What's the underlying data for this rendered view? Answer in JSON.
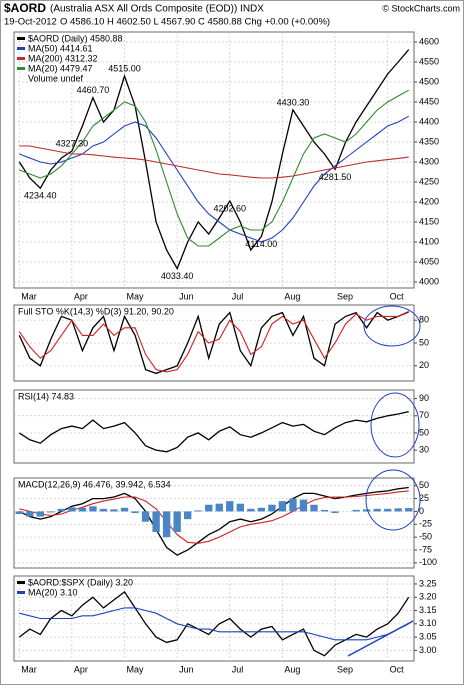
{
  "header": {
    "symbol": "$AORD",
    "title": "(Australia ASX All Ords Composite (EOD)) INDX",
    "date": "19-Oct-2012",
    "quote_line": "O 4586.10  H 4602.50  L 4567.90  C 4580.88  Chg +0.00 (+0.00%)",
    "credit": "© StockCharts.com"
  },
  "chart_data": [
    {
      "type": "line",
      "categories": [
        "Mar",
        null,
        null,
        null,
        null,
        "Apr",
        null,
        null,
        null,
        null,
        "May",
        null,
        null,
        null,
        null,
        "Jun",
        null,
        null,
        null,
        null,
        "Jul",
        null,
        null,
        null,
        null,
        "Aug",
        null,
        null,
        null,
        null,
        "Sep",
        null,
        null,
        null,
        null,
        "Oct",
        null,
        null
      ],
      "series": [
        {
          "name": "$AORD (Daily) 4580.88",
          "color": "#000000",
          "values": [
            4300,
            4260,
            4234.4,
            4280,
            4310,
            4327.3,
            4390,
            4460.7,
            4400,
            4430,
            4515,
            4440,
            4300,
            4150,
            4080,
            4033.4,
            4100,
            4150,
            4120,
            4160,
            4202.6,
            4150,
            4080,
            4114,
            4200,
            4320,
            4430.3,
            4390,
            4350,
            4320,
            4281.5,
            4350,
            4400,
            4440,
            4480,
            4520,
            4550,
            4580.88
          ]
        },
        {
          "name": "MA(50) 4414.61",
          "color": "#1f3fbf",
          "values": [
            4320,
            4310,
            4300,
            4295,
            4300,
            4310,
            4320,
            4340,
            4350,
            4370,
            4390,
            4400,
            4390,
            4360,
            4320,
            4280,
            4240,
            4200,
            4170,
            4150,
            4130,
            4120,
            4110,
            4100,
            4110,
            4130,
            4160,
            4200,
            4240,
            4270,
            4290,
            4310,
            4330,
            4350,
            4370,
            4390,
            4400,
            4414.61
          ]
        },
        {
          "name": "MA(200) 4312.32",
          "color": "#c0282e",
          "values": [
            4340,
            4340,
            4335,
            4330,
            4325,
            4320,
            4320,
            4318,
            4315,
            4312,
            4310,
            4308,
            4305,
            4300,
            4295,
            4290,
            4285,
            4280,
            4275,
            4270,
            4268,
            4265,
            4262,
            4260,
            4260,
            4262,
            4265,
            4270,
            4275,
            4280,
            4285,
            4290,
            4295,
            4300,
            4303,
            4306,
            4309,
            4312.32
          ]
        },
        {
          "name": "MA(20) 4479.47",
          "color": "#2e8b2e",
          "values": [
            4280,
            4270,
            4260,
            4270,
            4290,
            4320,
            4350,
            4390,
            4410,
            4430,
            4450,
            4440,
            4400,
            4330,
            4250,
            4170,
            4110,
            4090,
            4090,
            4110,
            4130,
            4140,
            4130,
            4130,
            4150,
            4200,
            4260,
            4320,
            4360,
            4370,
            4360,
            4350,
            4370,
            4400,
            4430,
            4450,
            4465,
            4479.47
          ]
        }
      ],
      "note": "Volume undef",
      "annotations": [
        {
          "x": 2,
          "value": 4234.4,
          "label": "4234.40"
        },
        {
          "x": 5,
          "value": 4327.3,
          "label": "4327.30"
        },
        {
          "x": 7,
          "value": 4460.7,
          "label": "4460.70"
        },
        {
          "x": 10,
          "value": 4515,
          "label": "4515.00"
        },
        {
          "x": 15,
          "value": 4033.4,
          "label": "4033.40"
        },
        {
          "x": 20,
          "value": 4202.6,
          "label": "4202.60"
        },
        {
          "x": 23,
          "value": 4114,
          "label": "4114.00"
        },
        {
          "x": 26,
          "value": 4430.3,
          "label": "4430.30"
        },
        {
          "x": 30,
          "value": 4281.5,
          "label": "4281.50"
        }
      ],
      "ylim": [
        3985,
        4625
      ],
      "yticks": [
        4000,
        4050,
        4100,
        4150,
        4200,
        4250,
        4300,
        4350,
        4400,
        4450,
        4500,
        4550,
        4600
      ],
      "grid": true
    },
    {
      "type": "line",
      "title": "Full STO %K(14,3) %D(3) 91.20, 90.20",
      "series": [
        {
          "color": "#000000",
          "values": [
            60,
            30,
            20,
            55,
            85,
            80,
            40,
            70,
            85,
            40,
            85,
            60,
            15,
            10,
            15,
            20,
            50,
            85,
            30,
            75,
            90,
            40,
            20,
            70,
            85,
            90,
            60,
            85,
            30,
            20,
            75,
            85,
            90,
            70,
            90,
            80,
            85,
            91.2
          ]
        },
        {
          "color": "#d02020",
          "values": [
            65,
            45,
            30,
            40,
            60,
            80,
            60,
            60,
            75,
            60,
            70,
            70,
            35,
            15,
            12,
            15,
            35,
            65,
            50,
            55,
            80,
            65,
            35,
            45,
            75,
            85,
            75,
            80,
            55,
            30,
            50,
            75,
            88,
            80,
            85,
            85,
            85,
            90.2
          ]
        }
      ],
      "ylim": [
        0,
        100
      ],
      "yticks": [
        20,
        50,
        80
      ],
      "grid": true
    },
    {
      "type": "line",
      "title": "RSI(14) 74.83",
      "series": [
        {
          "color": "#000000",
          "values": [
            50,
            42,
            38,
            48,
            55,
            58,
            55,
            65,
            55,
            58,
            62,
            50,
            35,
            30,
            28,
            33,
            45,
            50,
            42,
            52,
            57,
            48,
            45,
            50,
            56,
            62,
            58,
            60,
            52,
            48,
            56,
            62,
            65,
            63,
            67,
            70,
            72,
            74.83
          ]
        }
      ],
      "ylim": [
        15,
        100
      ],
      "yticks": [
        30,
        50,
        70,
        90
      ],
      "grid": true
    },
    {
      "type": "line",
      "title": "MACD(12,26,9) 46.476, 39.942, 6.534",
      "series": [
        {
          "color": "#000000",
          "values": [
            0,
            -10,
            -15,
            -10,
            0,
            10,
            15,
            25,
            25,
            28,
            35,
            25,
            0,
            -35,
            -70,
            -85,
            -75,
            -60,
            -45,
            -35,
            -20,
            -15,
            -20,
            -15,
            -5,
            10,
            25,
            35,
            35,
            30,
            25,
            28,
            32,
            35,
            38,
            40,
            44,
            46.476
          ]
        },
        {
          "color": "#d02020",
          "values": [
            5,
            0,
            -5,
            -8,
            -5,
            2,
            8,
            15,
            20,
            24,
            28,
            28,
            20,
            5,
            -20,
            -45,
            -60,
            -62,
            -58,
            -50,
            -40,
            -30,
            -25,
            -22,
            -18,
            -10,
            0,
            12,
            22,
            27,
            28,
            28,
            29,
            31,
            33,
            35,
            38,
            39.942
          ]
        },
        {
          "color": "#4a86c5",
          "style": "bars",
          "values": [
            -5,
            -10,
            -10,
            -2,
            5,
            8,
            7,
            10,
            5,
            4,
            7,
            -3,
            -20,
            -40,
            -50,
            -40,
            -15,
            2,
            13,
            15,
            20,
            15,
            5,
            7,
            13,
            20,
            25,
            23,
            13,
            3,
            -3,
            0,
            3,
            4,
            5,
            5,
            6,
            6.534
          ]
        }
      ],
      "ylim": [
        -110,
        65
      ],
      "yticks": [
        -100,
        -75,
        -50,
        -25,
        0,
        25,
        50
      ],
      "grid": true
    },
    {
      "type": "line",
      "categories": [
        "Mar",
        null,
        null,
        null,
        null,
        "Apr",
        null,
        null,
        null,
        null,
        "May",
        null,
        null,
        null,
        null,
        "Jun",
        null,
        null,
        null,
        null,
        "Jul",
        null,
        null,
        null,
        null,
        "Aug",
        null,
        null,
        null,
        null,
        "Sep",
        null,
        null,
        null,
        null,
        "Oct",
        null,
        null
      ],
      "series": [
        {
          "name": "$AORD:$SPX (Daily) 3.20",
          "color": "#000000",
          "values": [
            3.05,
            3.08,
            3.06,
            3.12,
            3.15,
            3.13,
            3.17,
            3.2,
            3.16,
            3.19,
            3.22,
            3.16,
            3.1,
            3.05,
            3.03,
            3.04,
            3.1,
            3.08,
            3.06,
            3.1,
            3.12,
            3.08,
            3.05,
            3.08,
            3.09,
            3.04,
            3.06,
            3.08,
            3.0,
            2.98,
            3.02,
            3.04,
            3.06,
            3.05,
            3.08,
            3.1,
            3.14,
            3.2
          ]
        },
        {
          "name": "MA(20) 3.10",
          "color": "#1f3fbf",
          "values": [
            3.14,
            3.13,
            3.12,
            3.12,
            3.12,
            3.12,
            3.13,
            3.13,
            3.14,
            3.15,
            3.16,
            3.16,
            3.15,
            3.14,
            3.12,
            3.1,
            3.09,
            3.08,
            3.08,
            3.07,
            3.07,
            3.07,
            3.07,
            3.07,
            3.07,
            3.07,
            3.07,
            3.07,
            3.06,
            3.05,
            3.04,
            3.04,
            3.04,
            3.04,
            3.05,
            3.06,
            3.08,
            3.1
          ]
        }
      ],
      "ylim": [
        2.96,
        3.28
      ],
      "yticks": [
        {
          "value": 3.0,
          "label": "3.00"
        },
        {
          "value": 3.05,
          "label": "3.05"
        },
        {
          "value": 3.1,
          "label": "3.10"
        },
        {
          "value": 3.15,
          "label": "3.15"
        },
        {
          "value": 3.2,
          "label": "3.20"
        },
        {
          "value": 3.25,
          "label": "3.25"
        }
      ],
      "grid": true
    }
  ]
}
